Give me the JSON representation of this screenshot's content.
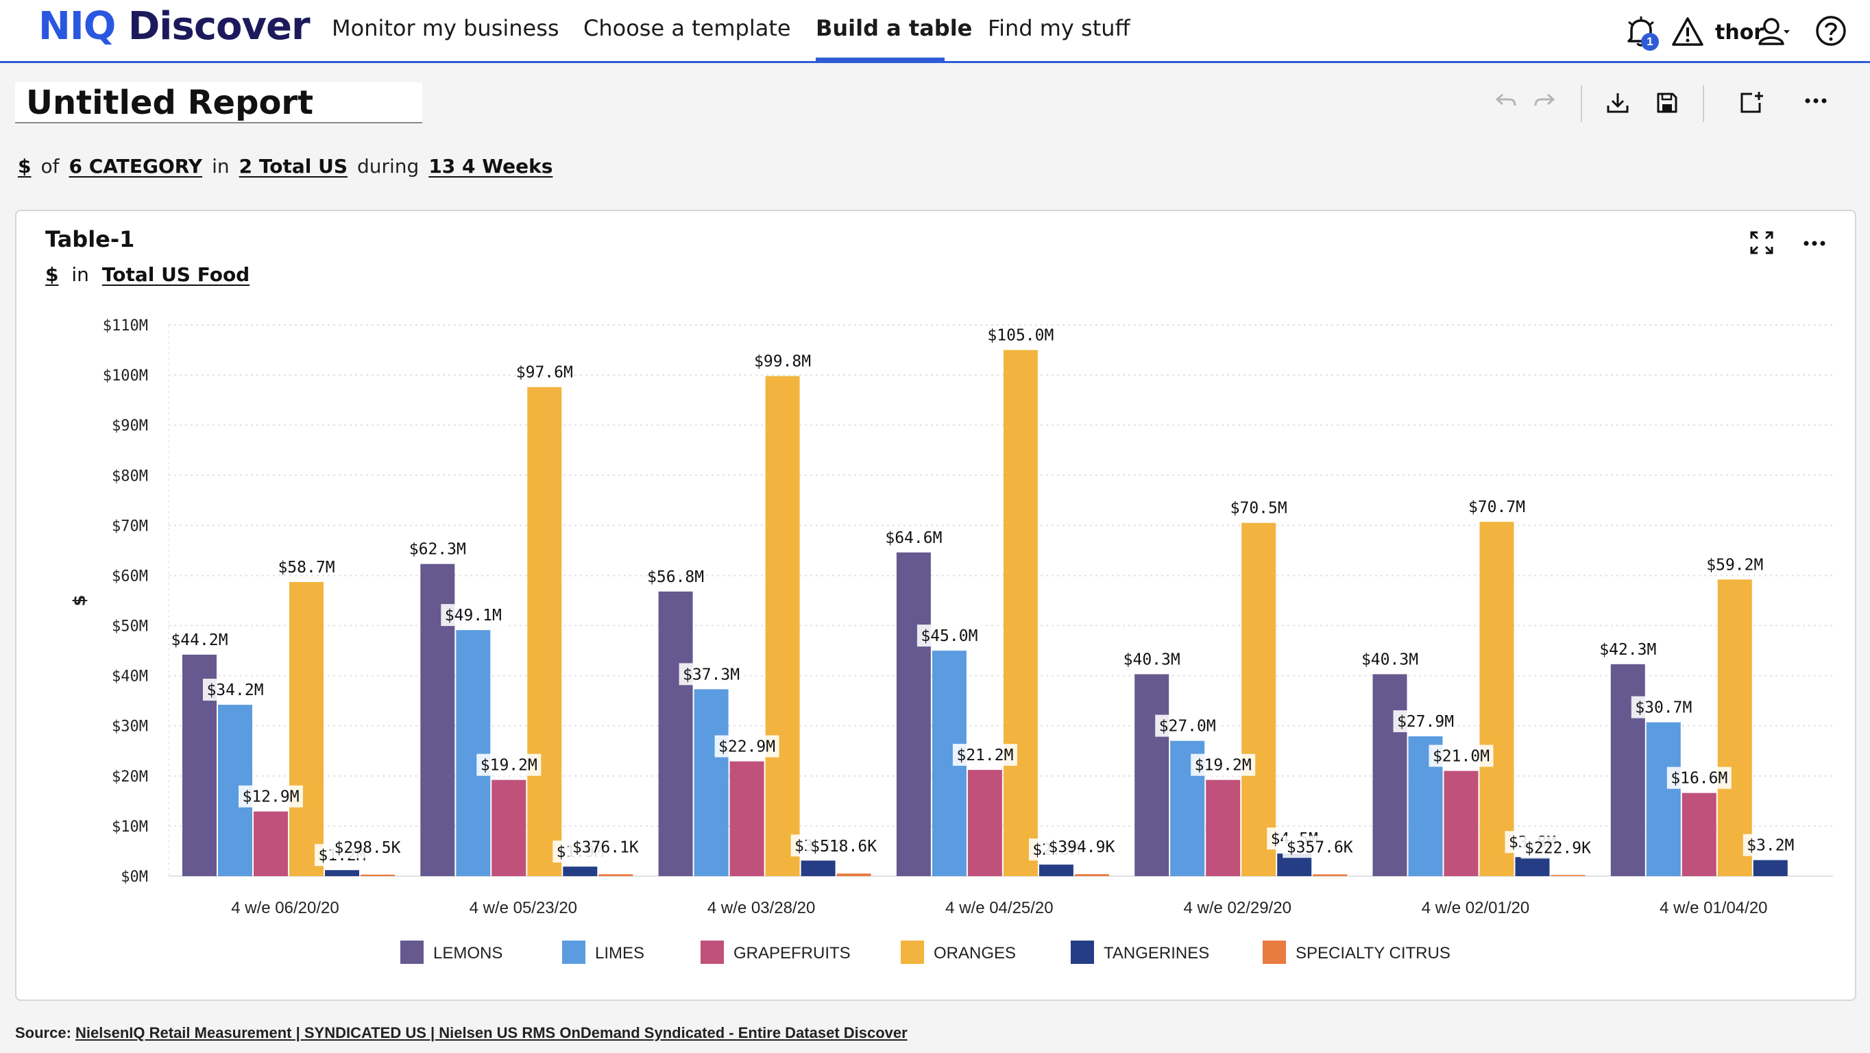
{
  "app": {
    "logo_brand": "NIQ",
    "logo_product": "Discover"
  },
  "nav": {
    "items": [
      {
        "label": "Monitor my business"
      },
      {
        "label": "Choose a template"
      },
      {
        "label": "Build a table"
      },
      {
        "label": "Find my stuff"
      }
    ],
    "active_index": 2
  },
  "header": {
    "notification_count": "1",
    "user": "thor"
  },
  "report": {
    "title": "Untitled Report",
    "query": {
      "measure": "$",
      "word_of": "of",
      "category": "6 CATEGORY",
      "word_in": "in",
      "market": "2 Total US",
      "word_during": "during",
      "period": "13 4 Weeks"
    }
  },
  "card": {
    "title": "Table-1",
    "sub_measure": "$",
    "sub_word_in": "in",
    "sub_market": "Total US Food"
  },
  "chart_data": {
    "type": "bar",
    "ylabel": "$",
    "xlabel": "",
    "ylim": [
      0,
      110
    ],
    "y_unit": "millions of dollars",
    "y_ticks": [
      "$0M",
      "$10M",
      "$20M",
      "$30M",
      "$40M",
      "$50M",
      "$60M",
      "$70M",
      "$80M",
      "$90M",
      "$100M",
      "$110M"
    ],
    "categories": [
      "4 w/e 06/20/20",
      "4 w/e 05/23/20",
      "4 w/e 03/28/20",
      "4 w/e 04/25/20",
      "4 w/e 02/29/20",
      "4 w/e 02/01/20",
      "4 w/e 01/04/20"
    ],
    "legend_position": "bottom",
    "grid": "dotted horizontal",
    "series": [
      {
        "name": "LEMONS",
        "color": "#65598f",
        "values": [
          44.2,
          62.3,
          56.8,
          64.6,
          40.3,
          40.3,
          42.3
        ],
        "labels": [
          "$44.2M",
          "$62.3M",
          "$56.8M",
          "$64.6M",
          "$40.3M",
          "$40.3M",
          "$42.3M"
        ]
      },
      {
        "name": "LIMES",
        "color": "#5b9be0",
        "values": [
          34.2,
          49.1,
          37.3,
          45.0,
          27.0,
          27.9,
          30.7
        ],
        "labels": [
          "$34.2M",
          "$49.1M",
          "$37.3M",
          "$45.0M",
          "$27.0M",
          "$27.9M",
          "$30.7M"
        ]
      },
      {
        "name": "GRAPEFRUITS",
        "color": "#c0517a",
        "values": [
          12.9,
          19.2,
          22.9,
          21.2,
          19.2,
          21.0,
          16.6
        ],
        "labels": [
          "$12.9M",
          "$19.2M",
          "$22.9M",
          "$21.2M",
          "$19.2M",
          "$21.0M",
          "$16.6M"
        ]
      },
      {
        "name": "ORANGES",
        "color": "#f2b43e",
        "values": [
          58.7,
          97.6,
          99.8,
          105.0,
          70.5,
          70.7,
          59.2
        ],
        "labels": [
          "$58.7M",
          "$97.6M",
          "$99.8M",
          "$105.0M",
          "$70.5M",
          "$70.7M",
          "$59.2M"
        ]
      },
      {
        "name": "TANGERINES",
        "color": "#243d85",
        "values": [
          1.2,
          1.9,
          3.1,
          2.3,
          4.5,
          3.8,
          3.2
        ],
        "labels": [
          "$1.2M",
          "$1.9M",
          "$3.1M",
          "$2.3M",
          "$4.5M",
          "$3.8M",
          "$3.2M"
        ]
      },
      {
        "name": "SPECIALTY CITRUS",
        "color": "#e87b3f",
        "values": [
          0.2985,
          0.3761,
          0.5186,
          0.3949,
          0.3576,
          0.2229,
          null
        ],
        "labels": [
          "$298.5K",
          "$376.1K",
          "$518.6K",
          "$394.9K",
          "$357.6K",
          "$222.9K",
          ""
        ]
      }
    ]
  },
  "footer": {
    "prefix": "Source: ",
    "source": "NielsenIQ Retail Measurement | SYNDICATED US | Nielsen US RMS OnDemand Syndicated - Entire Dataset Discover"
  }
}
